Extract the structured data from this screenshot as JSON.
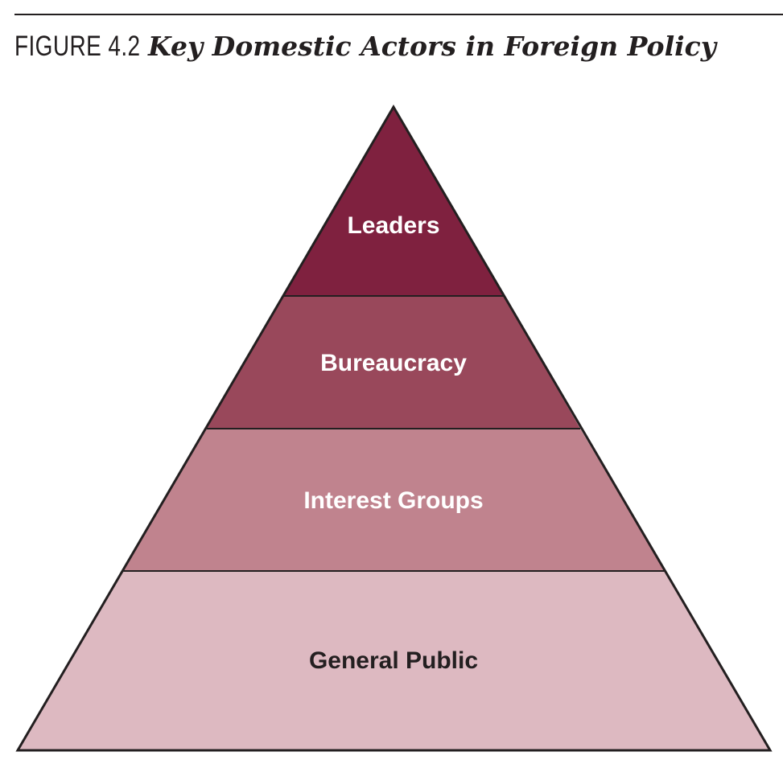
{
  "figure": {
    "number": "FIGURE 4.2",
    "title": "Key Domestic Actors in Foreign Policy"
  },
  "pyramid": {
    "tiers": [
      {
        "label": "Leaders",
        "fill": "#7f213f",
        "text_color": "#ffffff"
      },
      {
        "label": "Bureaucracy",
        "fill": "#99485b",
        "text_color": "#ffffff"
      },
      {
        "label": "Interest Groups",
        "fill": "#c0838e",
        "text_color": "#ffffff"
      },
      {
        "label": "General Public",
        "fill": "#ddb9c1",
        "text_color": "#231f20"
      }
    ],
    "outline_color": "#231f20"
  }
}
